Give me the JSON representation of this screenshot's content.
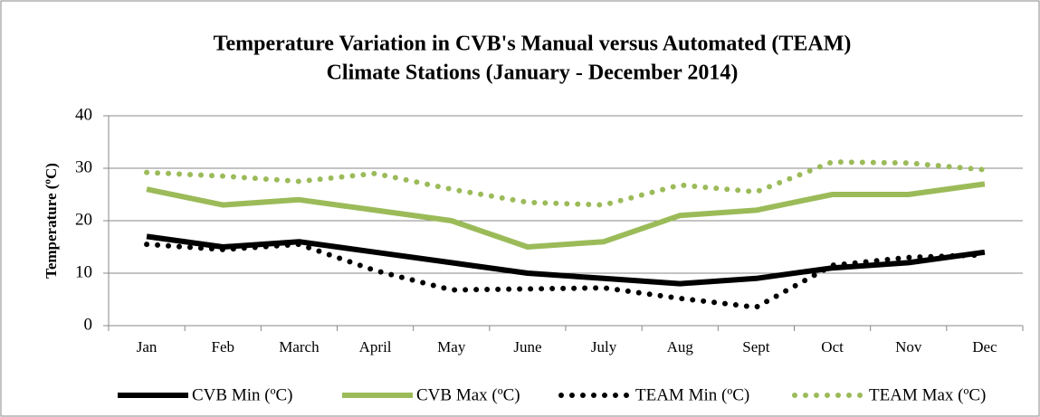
{
  "chart_data": {
    "type": "line",
    "title": "Temperature Variation in CVB's Manual versus Automated (TEAM)",
    "subtitle": "Climate Stations (January - December 2014)",
    "y_label": "Temperature (ºC)",
    "categories": [
      "Jan",
      "Feb",
      "March",
      "April",
      "May",
      "June",
      "July",
      "Aug",
      "Sept",
      "Oct",
      "Nov",
      "Dec"
    ],
    "series": [
      {
        "name": "CVB Min (ºC)",
        "color": "#000000",
        "style": "solid",
        "values": [
          17,
          15,
          16,
          14,
          12,
          10,
          9,
          8,
          9,
          11,
          12,
          14
        ]
      },
      {
        "name": "CVB Max (ºC)",
        "color": "#9bbb59",
        "style": "solid",
        "values": [
          26,
          23,
          24,
          22,
          20,
          15,
          16,
          21,
          22,
          25,
          25,
          27
        ]
      },
      {
        "name": "TEAM Min (ºC)",
        "color": "#000000",
        "style": "dotted",
        "values": [
          15.5,
          14.5,
          15.5,
          10.5,
          6.8,
          7,
          7.2,
          5.2,
          3.5,
          11.5,
          13,
          13.5
        ]
      },
      {
        "name": "TEAM Max (ºC)",
        "color": "#9bbb59",
        "style": "dotted",
        "values": [
          29.2,
          28.5,
          27.5,
          29,
          26,
          23.5,
          23,
          26.8,
          25.5,
          31.2,
          31,
          29.7
        ]
      }
    ],
    "ylim": [
      0,
      40
    ],
    "yticks": [
      0,
      10,
      20,
      30,
      40
    ],
    "grid": true,
    "legend": "bottom"
  }
}
